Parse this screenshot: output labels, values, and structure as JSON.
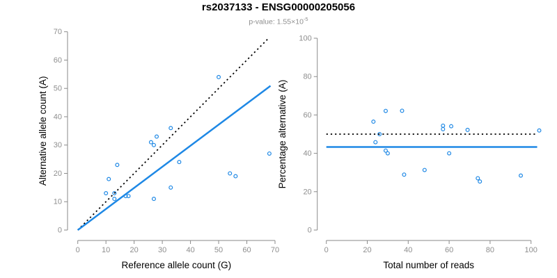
{
  "header": {
    "title": "rs2037133 - ENSG00000205056",
    "p_value_label": "p-value:",
    "p_value_mantissa": " 1.55×10",
    "p_value_exponent": "-5"
  },
  "colors": {
    "point_blue": "#1E88E5",
    "regression_blue": "#1E88E5",
    "dotted_black": "#000000",
    "axis_gray": "#8a8a8a",
    "tick_label_gray": "#8e8e8e",
    "axis_title_black": "#000000",
    "title_black": "#000000",
    "subtitle_gray": "#8e8e8e",
    "background": "#ffffff"
  },
  "chart_data": [
    {
      "id": "allele-count-scatter",
      "type": "scatter",
      "xlabel": "Reference allele count (G)",
      "ylabel": "Alternative allele count (A)",
      "xlim": [
        0,
        70
      ],
      "ylim": [
        0,
        70
      ],
      "xticks": [
        0,
        10,
        20,
        30,
        40,
        50,
        60,
        70
      ],
      "yticks": [
        0,
        10,
        20,
        30,
        40,
        50,
        60,
        70
      ],
      "grid": false,
      "legend": false,
      "points": [
        [
          10,
          13
        ],
        [
          11,
          18
        ],
        [
          13,
          11
        ],
        [
          13,
          13
        ],
        [
          14,
          23
        ],
        [
          17,
          12
        ],
        [
          18,
          12
        ],
        [
          26,
          31
        ],
        [
          27,
          11
        ],
        [
          27,
          30
        ],
        [
          28,
          33
        ],
        [
          33,
          15
        ],
        [
          33,
          36
        ],
        [
          36,
          24
        ],
        [
          50,
          54
        ],
        [
          54,
          20
        ],
        [
          56,
          19
        ],
        [
          68,
          27
        ]
      ],
      "lines": [
        {
          "name": "identity-line",
          "style": "dotted",
          "color": "#000000",
          "x1": 0,
          "y1": 0,
          "x2": 67.8,
          "y2": 67.8
        },
        {
          "name": "regression-line",
          "style": "solid",
          "color": "#1E88E5",
          "x1": 0,
          "y1": 0,
          "x2": 68.4,
          "y2": 50.9
        }
      ]
    },
    {
      "id": "percentage-scatter",
      "type": "scatter",
      "xlabel": "Total number of reads",
      "ylabel": "Percentage alternative (A)",
      "xlim": [
        0,
        104
      ],
      "ylim": [
        0,
        100
      ],
      "xticks": [
        0,
        20,
        40,
        60,
        80,
        100
      ],
      "yticks": [
        0,
        20,
        40,
        60,
        80,
        100
      ],
      "grid": false,
      "legend": false,
      "points": [
        [
          23,
          56.5
        ],
        [
          24,
          45.8
        ],
        [
          26,
          50
        ],
        [
          29,
          41.4
        ],
        [
          29,
          62.1
        ],
        [
          30,
          40
        ],
        [
          37,
          62.2
        ],
        [
          38,
          28.9
        ],
        [
          48,
          31.3
        ],
        [
          57,
          52.6
        ],
        [
          57,
          54.4
        ],
        [
          60,
          40
        ],
        [
          61,
          54.1
        ],
        [
          69,
          52.2
        ],
        [
          74,
          27
        ],
        [
          75,
          25.3
        ],
        [
          95,
          28.4
        ],
        [
          104,
          51.9
        ]
      ],
      "lines": [
        {
          "name": "fifty-percent-line",
          "style": "dotted",
          "color": "#000000",
          "x1": 0,
          "y1": 50,
          "x2": 103,
          "y2": 50
        },
        {
          "name": "mean-percentage-line",
          "style": "solid",
          "color": "#1E88E5",
          "x1": 0,
          "y1": 43.3,
          "x2": 103,
          "y2": 43.3
        }
      ]
    }
  ]
}
